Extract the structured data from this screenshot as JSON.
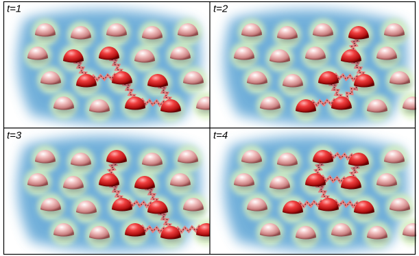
{
  "panels": [
    {
      "label": "t=1"
    },
    {
      "label": "t=2"
    },
    {
      "label": "t=3"
    },
    {
      "label": "t=4"
    }
  ]
}
